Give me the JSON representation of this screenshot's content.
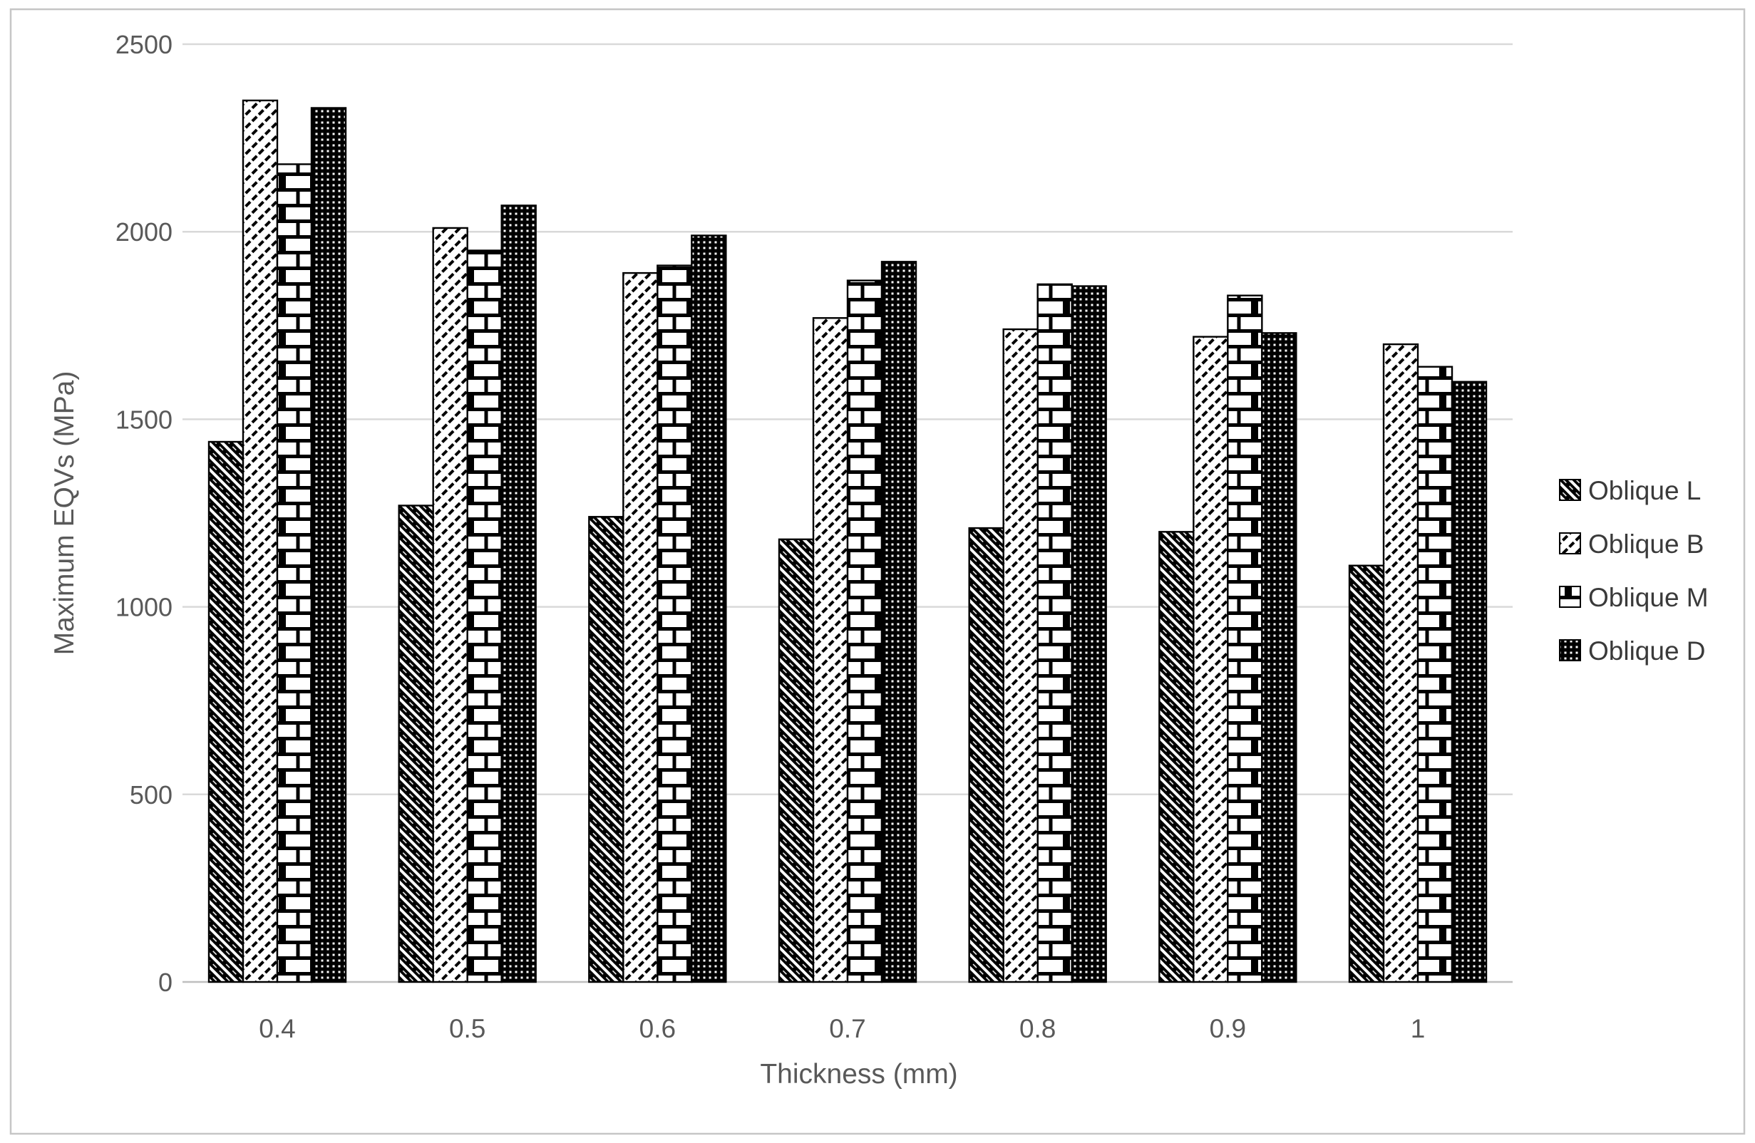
{
  "chart_data": {
    "type": "bar",
    "title": "",
    "xlabel": "Thickness (mm)",
    "ylabel": "Maximum EQVs (MPa)",
    "categories": [
      "0.4",
      "0.5",
      "0.6",
      "0.7",
      "0.8",
      "0.9",
      "1"
    ],
    "series": [
      {
        "name": "Oblique L",
        "pattern": "wide-downward-diagonal",
        "values": [
          1440,
          1270,
          1240,
          1180,
          1210,
          1200,
          1110
        ]
      },
      {
        "name": "Oblique B",
        "pattern": "dashed-upward-diagonal",
        "values": [
          2350,
          2010,
          1890,
          1770,
          1740,
          1720,
          1700
        ]
      },
      {
        "name": "Oblique M",
        "pattern": "horizontal-brick",
        "values": [
          2180,
          1950,
          1910,
          1870,
          1860,
          1830,
          1640
        ]
      },
      {
        "name": "Oblique D",
        "pattern": "dotted-grid",
        "values": [
          2330,
          2070,
          1990,
          1920,
          1855,
          1730,
          1600
        ]
      }
    ],
    "ylim": [
      0,
      2500
    ],
    "yticks": [
      0,
      500,
      1000,
      1500,
      2000,
      2500
    ],
    "grid": true,
    "legend_position": "right",
    "colors": {
      "bar_fill": "#000000",
      "bar_background": "#ffffff",
      "tick_text": "#595959",
      "legend_text": "#3a3a3a",
      "gridline": "#d9d9d9",
      "axis_line": "#bfbfbf",
      "frame_border": "#c6c6c6"
    }
  }
}
